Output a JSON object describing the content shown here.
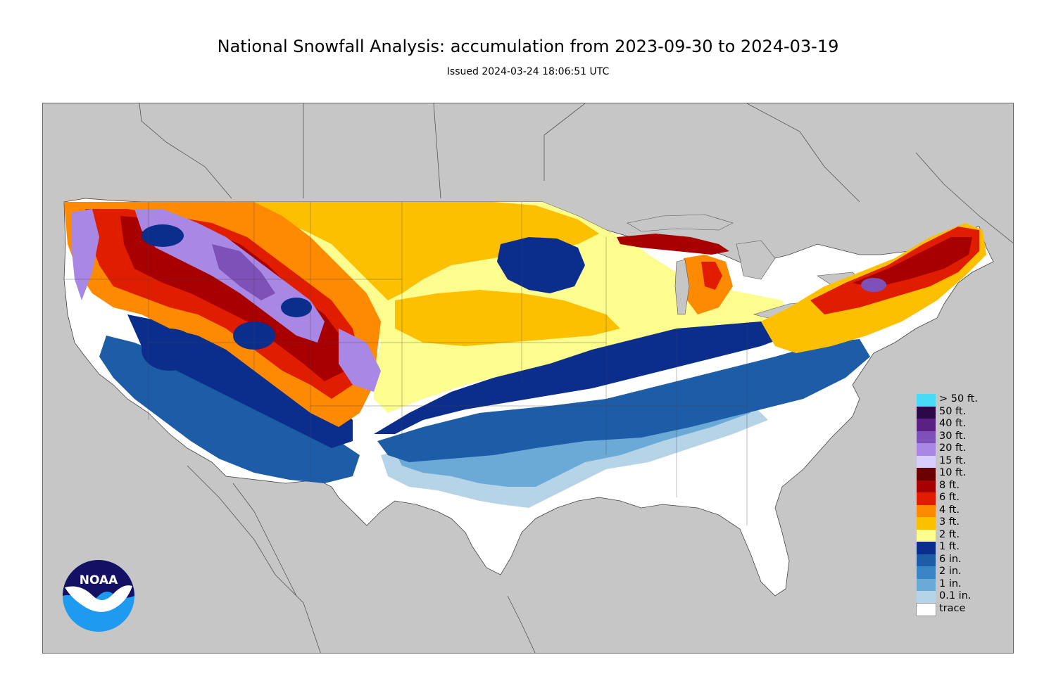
{
  "header": {
    "title": "National Snowfall Analysis: accumulation from 2023-09-30 to 2024-03-19",
    "issued": "Issued 2024-03-24 18:06:51 UTC"
  },
  "logo": {
    "text": "NOAA"
  },
  "colors": {
    "background_land": "#c6c6c6",
    "trace": "#ffffff",
    "0.1_in": "#b5d4e8",
    "1_in": "#6ba9d6",
    "2_in": "#3a85c5",
    "6_in": "#1d5ca6",
    "1_ft": "#0b2d8c",
    "2_ft": "#fdfc8e",
    "3_ft": "#fdc000",
    "4_ft": "#fd8a00",
    "6_ft": "#e11d00",
    "8_ft": "#a80000",
    "10_ft": "#6b0000",
    "15_ft": "#d7cdfd",
    "20_ft": "#a888e4",
    "30_ft": "#7d51b8",
    "40_ft": "#5a2084",
    "50_ft": "#2b0848",
    "gt_50_ft": "#47dbf7"
  },
  "legend": [
    {
      "label": "> 50 ft.",
      "color": "#47dbf7"
    },
    {
      "label": "50 ft.",
      "color": "#2b0848"
    },
    {
      "label": "40 ft.",
      "color": "#5a2084"
    },
    {
      "label": "30 ft.",
      "color": "#7d51b8"
    },
    {
      "label": "20 ft.",
      "color": "#a888e4"
    },
    {
      "label": "15 ft.",
      "color": "#d7cdfd"
    },
    {
      "label": "10 ft.",
      "color": "#6b0000"
    },
    {
      "label": "8 ft.",
      "color": "#a80000"
    },
    {
      "label": "6 ft.",
      "color": "#e11d00"
    },
    {
      "label": "4 ft.",
      "color": "#fd8a00"
    },
    {
      "label": "3 ft.",
      "color": "#fdc000"
    },
    {
      "label": "2 ft.",
      "color": "#fdfc8e"
    },
    {
      "label": "1 ft.",
      "color": "#0b2d8c"
    },
    {
      "label": "6 in.",
      "color": "#1d5ca6"
    },
    {
      "label": "2 in.",
      "color": "#3a85c5"
    },
    {
      "label": "1 in.",
      "color": "#6ba9d6"
    },
    {
      "label": "0.1 in.",
      "color": "#b5d4e8"
    },
    {
      "label": "trace",
      "color": "#ffffff"
    }
  ]
}
